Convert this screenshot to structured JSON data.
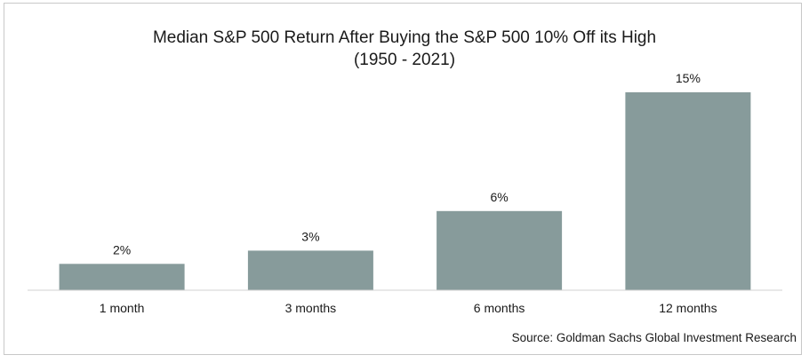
{
  "chart_data": {
    "type": "bar",
    "title": "Median S&P 500 Return After Buying the S&P 500 10% Off its High",
    "subtitle": "(1950 - 2021)",
    "categories": [
      "1 month",
      "3 months",
      "6 months",
      "12 months"
    ],
    "values": [
      2,
      3,
      6,
      15
    ],
    "value_labels": [
      "2%",
      "3%",
      "6%",
      "15%"
    ],
    "unit": "%",
    "ylim": [
      0,
      15
    ],
    "bar_color": "#879b9b",
    "grid": false,
    "legend": "none",
    "source": "Source: Goldman Sachs Global Investment Research"
  }
}
